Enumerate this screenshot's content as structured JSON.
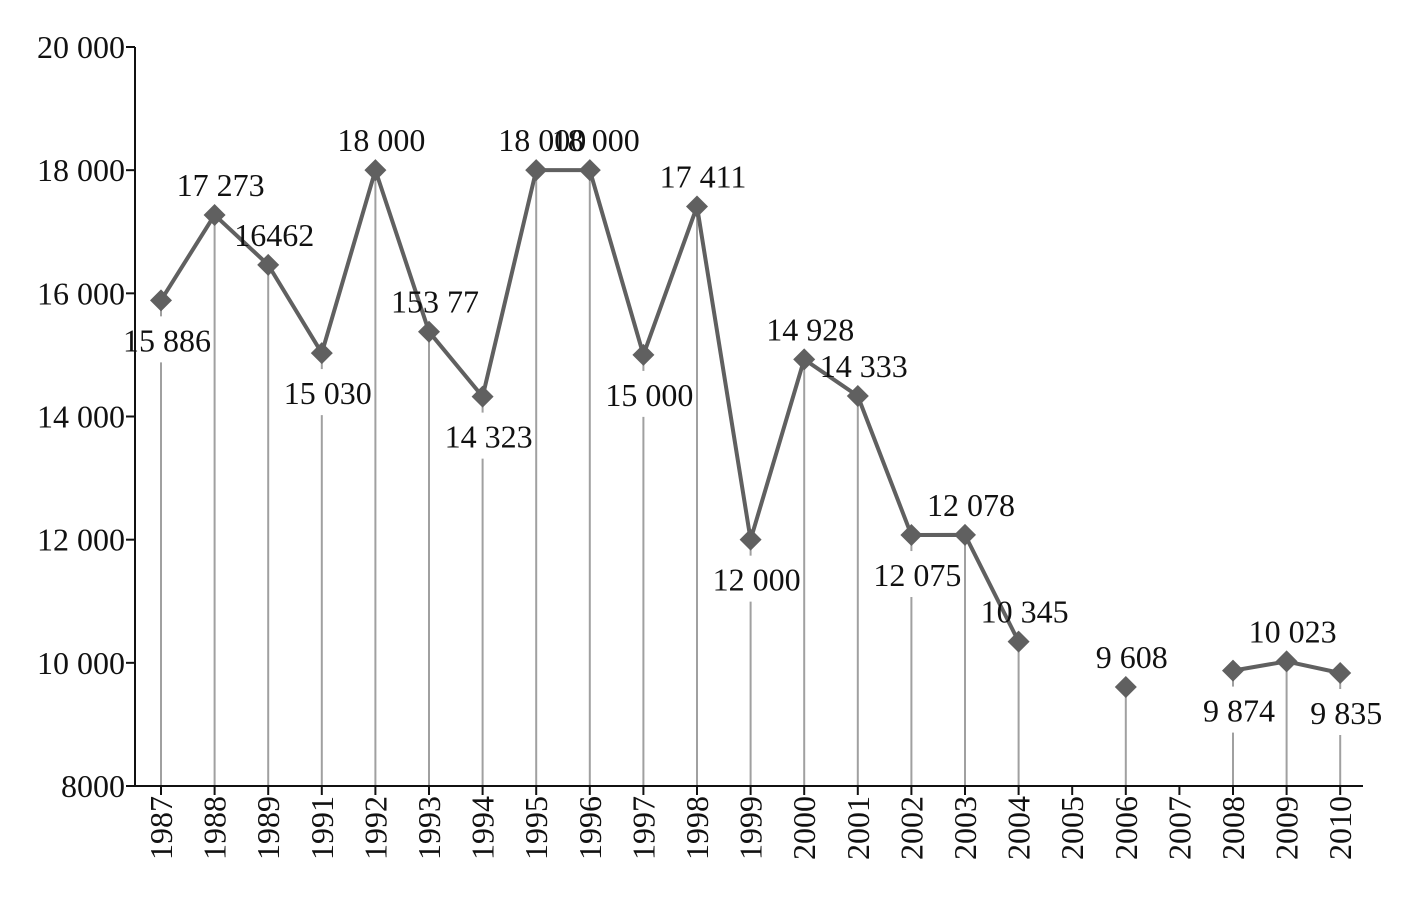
{
  "chart_data": {
    "type": "line",
    "title": "",
    "xlabel": "",
    "ylabel": "",
    "ylim": [
      8000,
      20000
    ],
    "yticks": [
      8000,
      10000,
      12000,
      14000,
      16000,
      18000,
      20000
    ],
    "ytick_labels": [
      "8000",
      "10 000",
      "12 000",
      "14 000",
      "16 000",
      "18 000",
      "20 000"
    ],
    "categories": [
      "1987",
      "1988",
      "1989",
      "1991",
      "1992",
      "1993",
      "1994",
      "1995",
      "1996",
      "1997",
      "1998",
      "1999",
      "2000",
      "2001",
      "2002",
      "2003",
      "2004",
      "2005",
      "2006",
      "2007",
      "2008",
      "2009",
      "2010"
    ],
    "values": [
      15886,
      17273,
      16462,
      15030,
      18000,
      15377,
      14323,
      18000,
      18000,
      15000,
      17411,
      12000,
      14928,
      14333,
      12075,
      12078,
      10345,
      null,
      9608,
      null,
      9874,
      10023,
      9835
    ],
    "data_labels": [
      "15 886",
      "17 273",
      "16462",
      "15 030",
      "18 000",
      "153 77",
      "14 323",
      "18 000",
      "18 000",
      "15 000",
      "17 411",
      "12 000",
      "14 928",
      "14 333",
      "12 075",
      "12 078",
      "10 345",
      null,
      "9 608",
      null,
      "9 874",
      "10 023",
      "9 835"
    ],
    "label_position": [
      "below",
      "above",
      "above",
      "below",
      "above",
      "above",
      "below",
      "above",
      "above",
      "below",
      "above",
      "below",
      "above",
      "above",
      "below",
      "above",
      "above",
      null,
      "above",
      null,
      "below",
      "above",
      "below"
    ],
    "series_color": "#606060",
    "drop_line_color": "#a0a0a0",
    "marker": "diamond",
    "grid": false,
    "legend": "none"
  }
}
